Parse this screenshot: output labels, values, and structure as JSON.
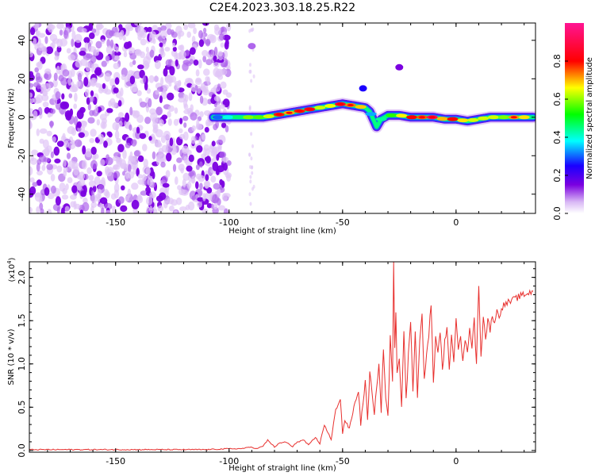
{
  "title": "C2E4.2023.303.18.25.R22",
  "chart_data": [
    {
      "type": "heatmap",
      "xlabel": "Height of straight line (km)",
      "ylabel": "Frequency (Hz)",
      "xlim": [
        -188,
        35
      ],
      "ylim": [
        -50,
        49
      ],
      "x_ticks": [
        -150,
        -100,
        -50,
        0
      ],
      "x_tick_labels": [
        "-150",
        "-100",
        "-50",
        "0"
      ],
      "y_ticks": [
        -40,
        -20,
        0,
        20,
        40
      ],
      "y_tick_labels": [
        "-40",
        "-20",
        "0",
        "20",
        "40"
      ],
      "grid": false,
      "colorbar": {
        "label": "Normalized spectral amplitude",
        "range": [
          0,
          1
        ],
        "ticks": [
          0.0,
          0.2,
          0.4,
          0.6,
          0.8
        ],
        "tick_labels": [
          "0.0",
          "0.2",
          "0.4",
          "0.6",
          "0.8"
        ],
        "colors": [
          "#ffffff",
          "#d9b8f5",
          "#7b00e0",
          "#1a00ff",
          "#00ffff",
          "#00ff00",
          "#ffff00",
          "#ff0000",
          "#ff1493"
        ]
      },
      "noise_region": {
        "x_range": [
          -188,
          -100
        ],
        "description_level": 0.3
      },
      "ridge": {
        "x": [
          -107,
          -100,
          -95,
          -90,
          -85,
          -80,
          -75,
          -70,
          -65,
          -60,
          -55,
          -50,
          -45,
          -40,
          -38,
          -35,
          -33,
          -30,
          -25,
          -20,
          -15,
          -10,
          -5,
          0,
          5,
          10,
          15,
          20,
          25,
          30,
          34
        ],
        "y": [
          0,
          0,
          0,
          0,
          0,
          1,
          2,
          3,
          4,
          5,
          6,
          7,
          6,
          5,
          3,
          -5,
          -1,
          1,
          1,
          0,
          0,
          0,
          -1,
          -1,
          -2,
          -1,
          0,
          0,
          0,
          0,
          0
        ],
        "amplitude": [
          0.3,
          0.45,
          0.55,
          0.6,
          0.7,
          0.75,
          0.8,
          0.85,
          0.8,
          0.7,
          0.75,
          0.8,
          0.75,
          0.6,
          0.35,
          0.3,
          0.45,
          0.6,
          0.7,
          0.75,
          0.8,
          0.85,
          0.8,
          0.75,
          0.7,
          0.65,
          0.6,
          0.65,
          0.7,
          0.7,
          0.7
        ]
      },
      "blobs": [
        {
          "x": -41,
          "y": 15,
          "amplitude": 0.25
        },
        {
          "x": -25,
          "y": 26,
          "amplitude": 0.15
        },
        {
          "x": -90,
          "y": 37,
          "amplitude": 0.1
        }
      ]
    },
    {
      "type": "line",
      "xlabel": "Height of straight line (km)",
      "ylabel": "SNR (10 * v/v)",
      "y_multiplier": "(x10",
      "y_multiplier_exp": "4",
      "y_multiplier_close": ")",
      "xlim": [
        -188,
        35
      ],
      "ylim": [
        -0.02,
        2.18
      ],
      "x_ticks": [
        -150,
        -100,
        -50,
        0
      ],
      "x_tick_labels": [
        "-150",
        "-100",
        "-50",
        "0"
      ],
      "y_ticks": [
        0.0,
        0.5,
        1.0,
        1.5,
        2.0
      ],
      "y_tick_labels": [
        "0.0",
        "0.5",
        "1.0",
        "1.5",
        "2.0"
      ],
      "grid": false,
      "series": [
        {
          "color": "#e8302e",
          "x": [
            -188,
            -160,
            -130,
            -110,
            -100,
            -95,
            -90,
            -88,
            -85,
            -83,
            -80,
            -78,
            -75,
            -72,
            -70,
            -67,
            -65,
            -62,
            -60,
            -58,
            -55,
            -53,
            -51,
            -50,
            -49,
            -47,
            -45,
            -43,
            -42,
            -40,
            -39,
            -38,
            -36,
            -35,
            -34,
            -33,
            -32,
            -31,
            -30,
            -29,
            -28,
            -27.5,
            -27,
            -26.5,
            -26,
            -25,
            -24,
            -23,
            -22,
            -21,
            -20,
            -19,
            -18,
            -17,
            -16,
            -15,
            -14,
            -13,
            -12,
            -11,
            -10,
            -9,
            -8,
            -7,
            -6,
            -5,
            -4,
            -3,
            -2,
            -1,
            0,
            1,
            2,
            3,
            4,
            5,
            6,
            7,
            8,
            9,
            10,
            11,
            12,
            13,
            14,
            15,
            16,
            17,
            18,
            19,
            20,
            22,
            24,
            26,
            28,
            30,
            32,
            34
          ],
          "y": [
            0.01,
            0.01,
            0.01,
            0.01,
            0.02,
            0.02,
            0.04,
            0.02,
            0.05,
            0.12,
            0.04,
            0.08,
            0.1,
            0.04,
            0.1,
            0.12,
            0.06,
            0.15,
            0.08,
            0.3,
            0.12,
            0.48,
            0.6,
            0.2,
            0.35,
            0.25,
            0.5,
            0.7,
            0.3,
            0.8,
            0.35,
            0.9,
            0.4,
            0.75,
            1.0,
            0.45,
            1.2,
            0.6,
            0.4,
            1.3,
            0.8,
            2.18,
            1.2,
            1.6,
            0.9,
            1.1,
            0.5,
            1.35,
            0.6,
            1.1,
            1.5,
            0.7,
            1.4,
            0.6,
            1.3,
            1.55,
            0.8,
            1.1,
            1.35,
            1.7,
            0.8,
            1.3,
            1.1,
            1.4,
            0.9,
            1.25,
            1.45,
            0.9,
            1.3,
            1.05,
            1.55,
            1.2,
            1.35,
            1.0,
            1.3,
            1.1,
            1.45,
            1.2,
            1.5,
            1.0,
            1.92,
            1.1,
            1.55,
            1.3,
            1.5,
            1.4,
            1.55,
            1.5,
            1.6,
            1.55,
            1.65,
            1.7,
            1.72,
            1.75,
            1.78,
            1.8,
            1.82,
            1.84
          ]
        }
      ]
    }
  ]
}
